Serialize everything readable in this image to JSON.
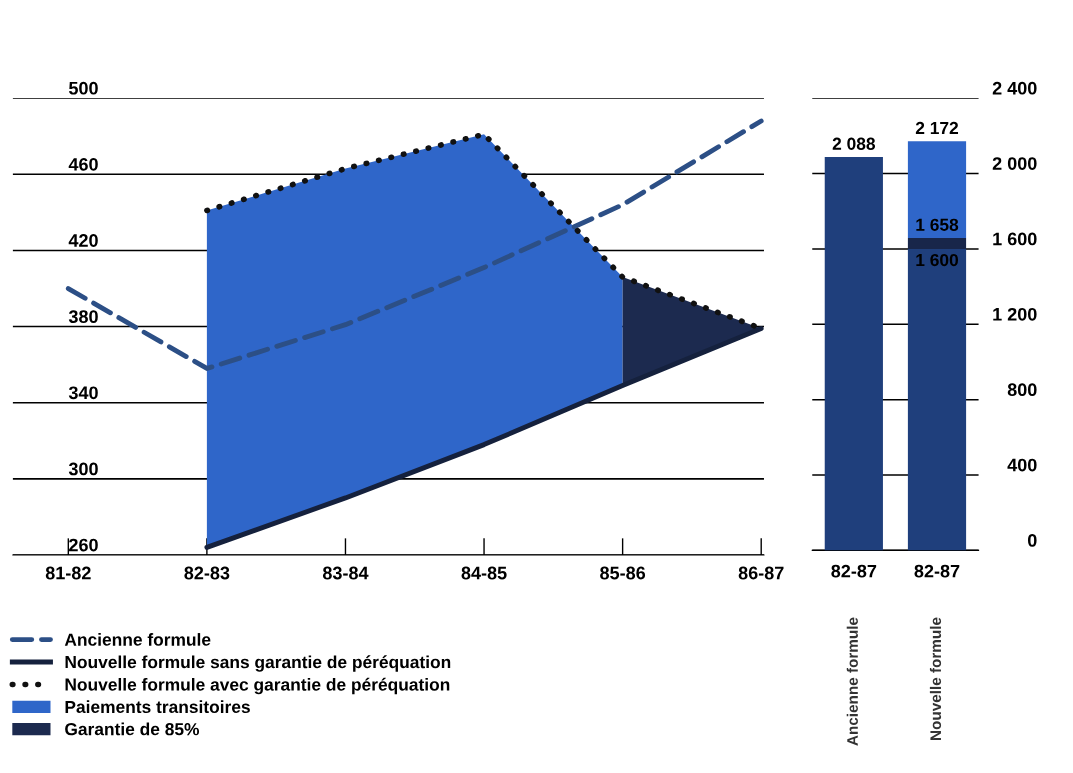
{
  "chart_data": [
    {
      "type": "line",
      "categories": [
        "81-82",
        "82-83",
        "83-84",
        "84-85",
        "85-86",
        "86-87"
      ],
      "ylim": [
        260,
        500
      ],
      "yticks": [
        260,
        300,
        340,
        380,
        420,
        460,
        500
      ],
      "grid": "y",
      "legend": "bottom",
      "series": [
        {
          "name": "Paiements transitoires",
          "type": "area",
          "color": "#2f66c9",
          "values": [
            null,
            441,
            463,
            481,
            406,
            null
          ]
        },
        {
          "name": "Garantie de 85%",
          "type": "area",
          "color": "#1c2a4f",
          "values": [
            null,
            null,
            null,
            null,
            406,
            379
          ]
        },
        {
          "name": "Ancienne formule",
          "type": "line",
          "line_style": "dashed",
          "color": "#2c4f86",
          "values": [
            400,
            358,
            381,
            411,
            444,
            488
          ]
        },
        {
          "name": "Nouvelle formule sans garantie de péréquation",
          "type": "line",
          "line_style": "solid",
          "color": "#15213d",
          "values": [
            null,
            264,
            290,
            318,
            349,
            379
          ]
        },
        {
          "name": "Nouvelle formule avec garantie de péréquation",
          "type": "line",
          "line_style": "dotted",
          "color": "#111111",
          "values": [
            null,
            441,
            463,
            481,
            406,
            379
          ]
        }
      ]
    },
    {
      "type": "bar",
      "stacked": true,
      "totals": [
        "2 088",
        "2 172"
      ],
      "categories": [
        "82-87",
        "82-87"
      ],
      "ylim": [
        0,
        2400
      ],
      "yticks": [
        0,
        400,
        800,
        {
          "value": 1200,
          "label": "1 200"
        },
        {
          "value": 1600,
          "label": "1 600"
        },
        {
          "value": 2000,
          "label": "2 000"
        },
        {
          "value": 2400,
          "label": "2 400"
        }
      ],
      "grid": "y",
      "annotations": [
        "Ancienne formule",
        "Nouvelle formule",
        {
          "text": "1 658",
          "y": 1658
        },
        {
          "text": "1 600",
          "y": 1600
        }
      ],
      "series": [
        {
          "color": "#1f3f7c",
          "values": [
            2088,
            1600
          ]
        },
        {
          "color": "#18264a",
          "values": [
            null,
            58
          ]
        },
        {
          "color": "#2f66c9",
          "values": [
            null,
            514
          ]
        }
      ]
    }
  ]
}
